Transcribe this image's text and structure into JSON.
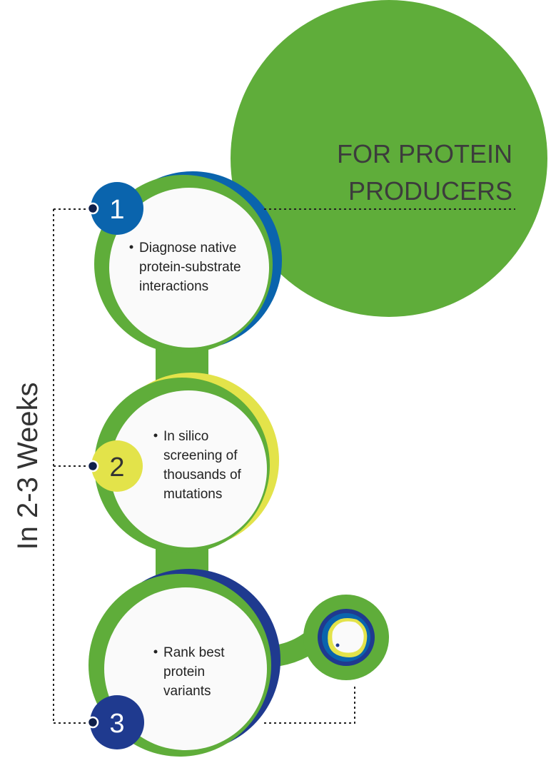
{
  "title": {
    "line1": "FOR PROTEIN",
    "line2": "PRODUCERS"
  },
  "side_label": "In 2-3 Weeks",
  "steps": [
    {
      "number": "1",
      "lines": [
        "Diagnose native",
        "protein-substrate",
        "interactions"
      ]
    },
    {
      "number": "2",
      "lines": [
        "In silico",
        "screening of",
        "thousands of",
        "mutations"
      ]
    },
    {
      "number": "3",
      "lines": [
        "Rank best",
        "protein",
        "variants"
      ]
    }
  ],
  "colors": {
    "green": "#5fad3a",
    "blue": "#0a64ad",
    "yellow": "#e3e34a",
    "navy": "#1f3a8f",
    "connector_dot": "#0f1f4a",
    "circle_fill": "#fafafa",
    "text": "#222222"
  },
  "icons": {
    "step3_satellite": "molecule-cell-icon"
  }
}
